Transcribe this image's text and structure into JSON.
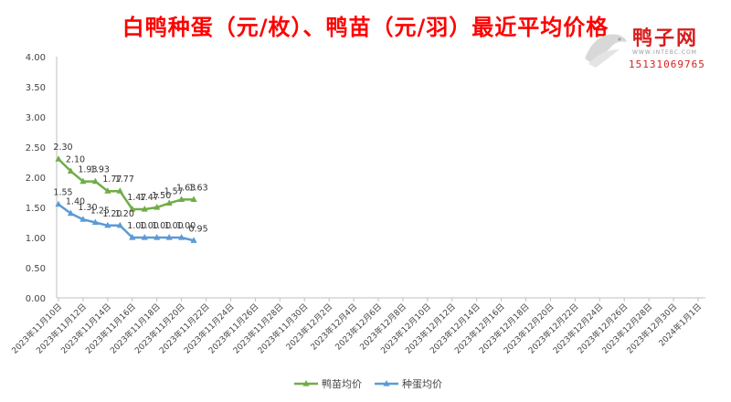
{
  "chart_data": {
    "type": "line",
    "title": "白鸭种蛋（元/枚）、鸭苗（元/羽）最近平均价格",
    "xlabel": "",
    "ylabel": "",
    "ylim": [
      0,
      4
    ],
    "yticks": [
      "0.00",
      "0.50",
      "1.00",
      "1.50",
      "2.00",
      "2.50",
      "3.00",
      "3.50",
      "4.00"
    ],
    "x_tick_labels": [
      "2023年11月10日",
      "2023年11月12日",
      "2023年11月14日",
      "2023年11月16日",
      "2023年11月18日",
      "2023年11月20日",
      "2023年11月22日",
      "2023年11月24日",
      "2023年11月26日",
      "2023年11月28日",
      "2023年11月30日",
      "2023年12月2日",
      "2023年12月4日",
      "2023年12月6日",
      "2023年12月8日",
      "2023年12月10日",
      "2023年12月12日",
      "2023年12月14日",
      "2023年12月16日",
      "2023年12月18日",
      "2023年12月20日",
      "2023年12月22日",
      "2023年12月24日",
      "2023年12月26日",
      "2023年12月28日",
      "2023年12月30日",
      "2024年1月1日"
    ],
    "x_dates": [
      "2023-11-10",
      "2023-11-11",
      "2023-11-12",
      "2023-11-13",
      "2023-11-14",
      "2023-11-15",
      "2023-11-16",
      "2023-11-17",
      "2023-11-18",
      "2023-11-19",
      "2023-11-20",
      "2023-11-21"
    ],
    "series": [
      {
        "name": "鸭苗均价",
        "color": "#70ad47",
        "values": [
          2.3,
          2.1,
          1.93,
          1.93,
          1.77,
          1.77,
          1.47,
          1.47,
          1.5,
          1.57,
          1.63,
          1.63
        ],
        "labels": [
          "2.30",
          "2.10",
          "1.93",
          "1.93",
          "1.77",
          "1.77",
          "1.47",
          "1.47",
          "1.50",
          "1.57",
          "1.63",
          "1.63"
        ]
      },
      {
        "name": "种蛋均价",
        "color": "#5b9bd5",
        "values": [
          1.55,
          1.4,
          1.3,
          1.25,
          1.2,
          1.2,
          1.0,
          1.0,
          1.0,
          1.0,
          1.0,
          0.95
        ],
        "labels": [
          "1.55",
          "1.40",
          "1.30",
          "1.25",
          "1.20",
          "1.20",
          "1.00",
          "1.00",
          "1.00",
          "1.00",
          "1.00",
          "0.95"
        ]
      }
    ],
    "grid": false,
    "legend": "bottom"
  },
  "watermark": {
    "brand": "鸭子网",
    "url": "WWW.INTEBC.COM",
    "phone": "15131069765"
  }
}
